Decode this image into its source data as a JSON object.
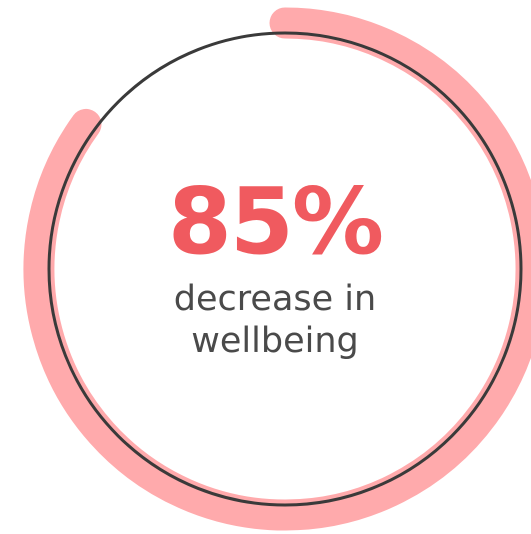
{
  "chart_data": {
    "type": "pie",
    "title": "",
    "value": 85,
    "value_label": "85%",
    "caption_lines": [
      "decrease in",
      "wellbeing"
    ],
    "max": 100,
    "colors": {
      "progress": "#ffaaac",
      "ring": "#3a3a3a",
      "value_text": "#f05a5f",
      "caption_text": "#4a4a4a"
    }
  }
}
